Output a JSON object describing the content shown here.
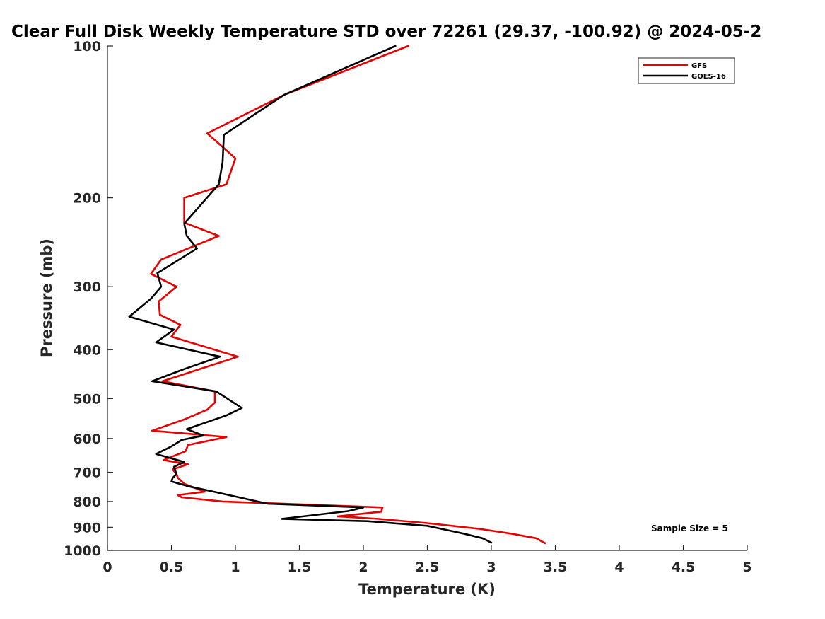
{
  "chart_data": {
    "type": "line",
    "title": "Clear Full Disk Weekly Temperature STD over 72261 (29.37, -100.92) @ 2024-05-2",
    "xlabel": "Temperature (K)",
    "ylabel": "Pressure (mb)",
    "xlim": [
      0,
      5
    ],
    "ylim": [
      1000,
      100
    ],
    "yscale": "log",
    "xticks": [
      "0",
      "0.5",
      "1",
      "1.5",
      "2",
      "2.5",
      "3",
      "3.5",
      "4",
      "4.5",
      "5"
    ],
    "yticks": [
      "100",
      "200",
      "300",
      "400",
      "500",
      "600",
      "700",
      "800",
      "900",
      "1000"
    ],
    "grid": false,
    "legend_position": "top-right",
    "annotation": "Sample Size = 5",
    "series": [
      {
        "name": "GFS",
        "color": "#e60000",
        "points": [
          [
            2.35,
            100
          ],
          [
            1.38,
            125
          ],
          [
            0.78,
            149
          ],
          [
            1.0,
            167
          ],
          [
            0.93,
            188
          ],
          [
            0.6,
            200
          ],
          [
            0.6,
            224
          ],
          [
            0.87,
            238
          ],
          [
            0.42,
            265
          ],
          [
            0.34,
            283
          ],
          [
            0.54,
            300
          ],
          [
            0.4,
            321
          ],
          [
            0.41,
            341
          ],
          [
            0.57,
            357
          ],
          [
            0.5,
            377
          ],
          [
            1.02,
            413
          ],
          [
            0.43,
            462
          ],
          [
            0.84,
            484
          ],
          [
            0.84,
            509
          ],
          [
            0.78,
            526
          ],
          [
            0.6,
            550
          ],
          [
            0.35,
            579
          ],
          [
            0.93,
            596
          ],
          [
            0.63,
            618
          ],
          [
            0.61,
            636
          ],
          [
            0.44,
            662
          ],
          [
            0.63,
            675
          ],
          [
            0.51,
            691
          ],
          [
            0.54,
            706
          ],
          [
            0.55,
            718
          ],
          [
            0.6,
            738
          ],
          [
            0.76,
            765
          ],
          [
            0.55,
            777
          ],
          [
            0.58,
            785
          ],
          [
            0.9,
            800
          ],
          [
            2.15,
            822
          ],
          [
            2.14,
            838
          ],
          [
            1.8,
            856
          ],
          [
            2.12,
            866
          ],
          [
            2.5,
            883
          ],
          [
            2.9,
            906
          ],
          [
            3.15,
            926
          ],
          [
            3.35,
            946
          ],
          [
            3.42,
            968
          ]
        ]
      },
      {
        "name": "GOES-16",
        "color": "#000000",
        "points": [
          [
            2.25,
            100
          ],
          [
            1.38,
            125
          ],
          [
            0.91,
            150
          ],
          [
            0.9,
            170
          ],
          [
            0.87,
            188
          ],
          [
            0.6,
            225
          ],
          [
            0.62,
            238
          ],
          [
            0.7,
            252
          ],
          [
            0.39,
            282
          ],
          [
            0.42,
            300
          ],
          [
            0.34,
            317
          ],
          [
            0.17,
            344
          ],
          [
            0.52,
            365
          ],
          [
            0.38,
            387
          ],
          [
            0.88,
            413
          ],
          [
            0.6,
            437
          ],
          [
            0.35,
            462
          ],
          [
            0.85,
            484
          ],
          [
            1.05,
            522
          ],
          [
            0.93,
            540
          ],
          [
            0.62,
            575
          ],
          [
            0.75,
            592
          ],
          [
            0.58,
            604
          ],
          [
            0.5,
            622
          ],
          [
            0.38,
            644
          ],
          [
            0.6,
            668
          ],
          [
            0.52,
            683
          ],
          [
            0.54,
            706
          ],
          [
            0.51,
            718
          ],
          [
            0.5,
            730
          ],
          [
            0.63,
            746
          ],
          [
            0.82,
            764
          ],
          [
            1.25,
            808
          ],
          [
            2.0,
            822
          ],
          [
            1.88,
            836
          ],
          [
            1.36,
            866
          ],
          [
            2.03,
            875
          ],
          [
            2.5,
            894
          ],
          [
            2.78,
            926
          ],
          [
            2.93,
            946
          ],
          [
            3.0,
            965
          ]
        ]
      }
    ]
  }
}
